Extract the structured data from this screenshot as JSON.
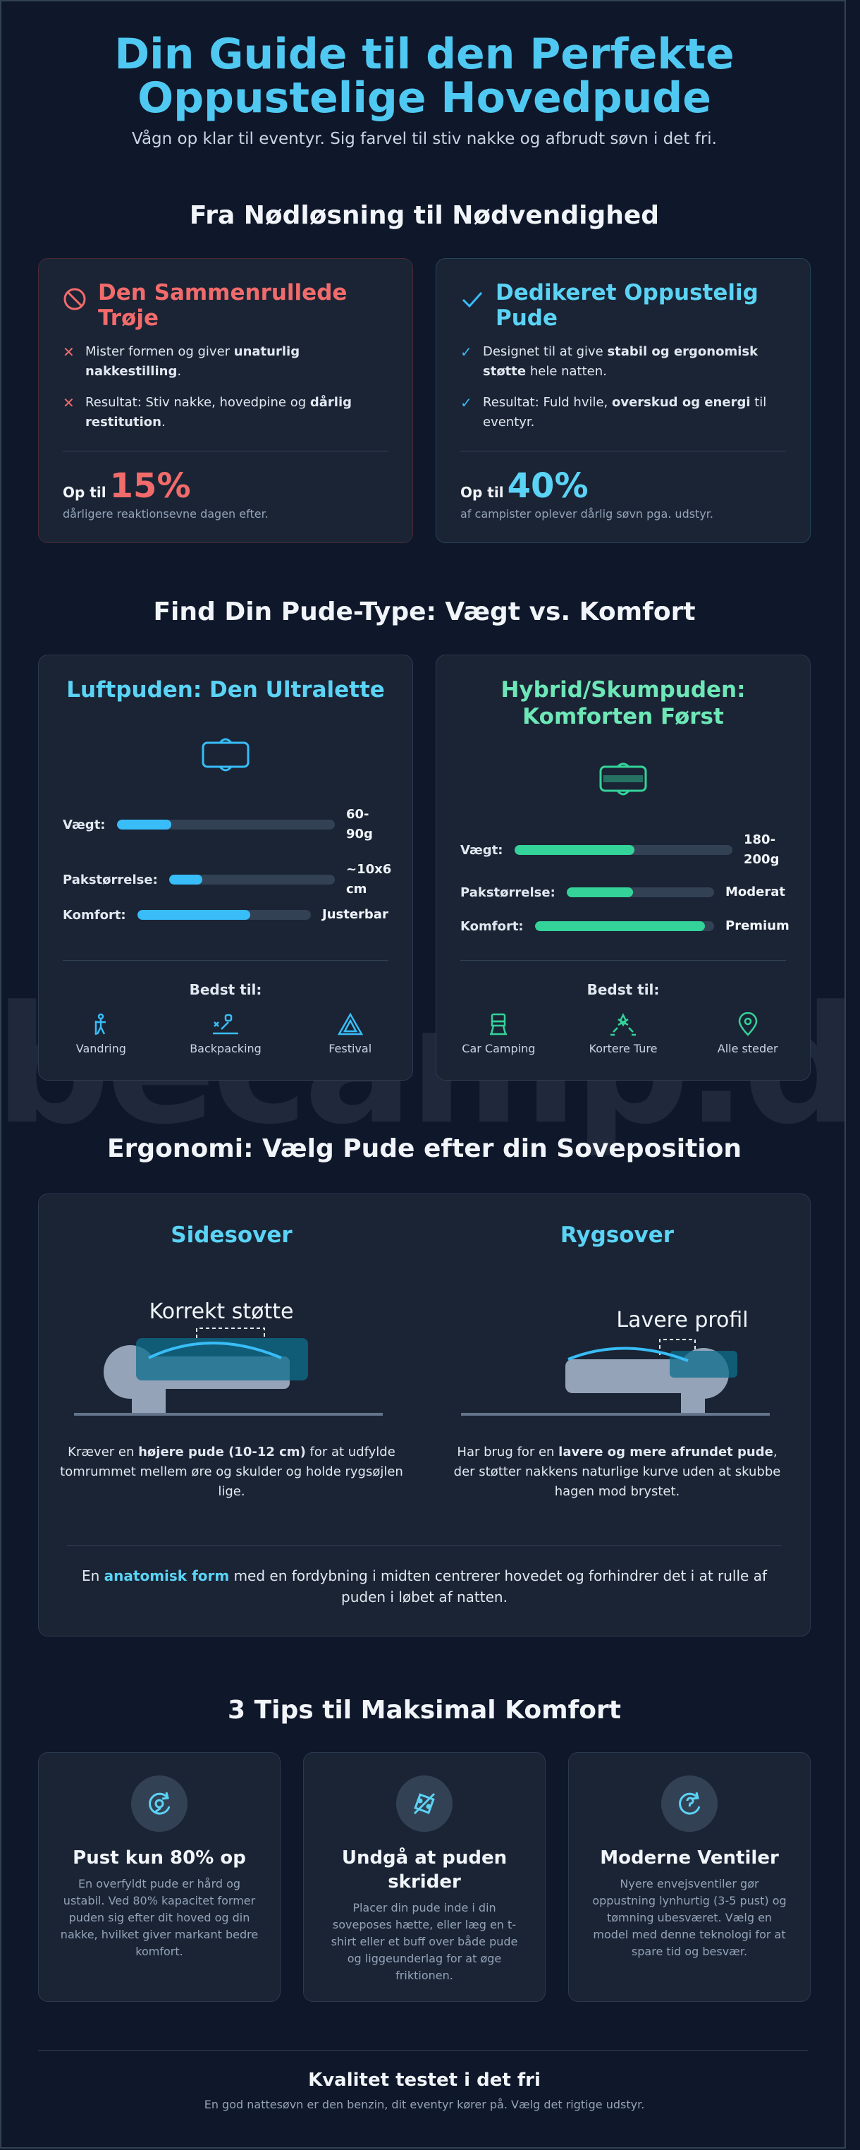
{
  "hero": {
    "title": "Din Guide til den Perfekte Oppustelige Hovedpude",
    "subtitle": "Vågn op klar til eventyr. Sig farvel til stiv nakke og afbrudt søvn i det fri."
  },
  "comparison": {
    "title": "Fra Nødløsning til Nødvendighed",
    "bad": {
      "title": "Den Sammenrullede Trøje",
      "icon": "ban-icon",
      "points": [
        {
          "pre": "Mister formen og giver ",
          "bold": "unaturlig nakkestilling",
          "post": "."
        },
        {
          "pre": "Resultat: Stiv nakke, hovedpine og ",
          "bold": "dårlig restitution",
          "post": "."
        }
      ],
      "stat_prefix": "Op til",
      "stat_value": "15%",
      "stat_caption": "dårligere reaktionsevne dagen efter."
    },
    "good": {
      "title": "Dedikeret Oppustelig Pude",
      "icon": "check-icon",
      "points": [
        {
          "pre": "Designet til at give ",
          "bold": "stabil og ergonomisk støtte",
          "post": " hele natten."
        },
        {
          "pre": "Resultat: Fuld hvile, ",
          "bold": "overskud og energi",
          "post": " til eventyr."
        }
      ],
      "stat_prefix": "Op til",
      "stat_value": "40%",
      "stat_caption": "af campister oplever dårlig søvn pga. udstyr."
    }
  },
  "types": {
    "title": "Find Din Pude-Type: Vægt vs. Komfort",
    "air": {
      "title": "Luftpuden: Den Ultralette",
      "color": "#38bdf8",
      "rows": [
        {
          "label": "Vægt:",
          "value": "60-90g",
          "level": 0.25
        },
        {
          "label": "Pakstørrelse:",
          "value": "~10x6 cm",
          "level": 0.2
        },
        {
          "label": "Komfort:",
          "value": "Justerbar",
          "level": 0.65
        }
      ],
      "best_label": "Bedst til:",
      "uses": [
        {
          "label": "Vandring",
          "icon": "hiker-icon"
        },
        {
          "label": "Backpacking",
          "icon": "backpacking-icon"
        },
        {
          "label": "Festival",
          "icon": "tent-icon"
        }
      ]
    },
    "hybrid": {
      "title": "Hybrid/Skumpuden: Komforten Først",
      "color": "#34d399",
      "rows": [
        {
          "label": "Vægt:",
          "value": "180-200g",
          "level": 0.55
        },
        {
          "label": "Pakstørrelse:",
          "value": "Moderat",
          "level": 0.45
        },
        {
          "label": "Komfort:",
          "value": "Premium",
          "level": 0.95
        }
      ],
      "best_label": "Bedst til:",
      "uses": [
        {
          "label": "Car Camping",
          "icon": "camp-chair-icon"
        },
        {
          "label": "Kortere Ture",
          "icon": "campfire-icon"
        },
        {
          "label": "Alle steder",
          "icon": "location-pin-icon"
        }
      ]
    }
  },
  "ergonomics": {
    "title": "Ergonomi: Vælg Pude efter din Soveposition",
    "side": {
      "title": "Sidesover",
      "diagram_label": "Korrekt støtte",
      "text_pre": "Kræver en ",
      "text_bold": "højere pude (10-12 cm)",
      "text_post": " for at udfylde tomrummet mellem øre og skulder og holde rygsøjlen lige."
    },
    "back": {
      "title": "Rygsover",
      "diagram_label": "Lavere profil",
      "text_pre": "Har brug for en ",
      "text_bold": "lavere og mere afrundet pude",
      "text_post": ", der støtter nakkens naturlige kurve uden at skubbe hagen mod brystet."
    },
    "footer_pre": "En ",
    "footer_hl": "anatomisk form",
    "footer_post": " med en fordybning i midten centrerer hovedet og forhindrer det i at rulle af puden i løbet af natten."
  },
  "tips": {
    "title": "3 Tips til Maksimal Komfort",
    "items": [
      {
        "title": "Pust kun 80% op",
        "icon": "inflate-icon",
        "text": "En overfyldt pude er hård og ustabil. Ved 80% kapacitet former puden sig efter dit hoved og din nakke, hvilket giver markant bedre komfort."
      },
      {
        "title": "Undgå at puden skrider",
        "icon": "anti-slip-icon",
        "text": "Placer din pude inde i din soveposes hætte, eller læg en t-shirt eller et buff over både pude og liggeunderlag for at øge friktionen."
      },
      {
        "title": "Moderne Ventiler",
        "icon": "valve-icon",
        "text": "Nyere envejsventiler gør oppustning lynhurtig (3-5 pust) og tømning ubesværet. Vælg en model med denne teknologi for at spare tid og besvær."
      }
    ]
  },
  "footer": {
    "title": "Kvalitet testet i det fri",
    "subtitle": "En god nattesøvn er den benzin, dit eventyr kører på. Vælg det rigtige udstyr."
  },
  "watermark": "becamp.dk"
}
